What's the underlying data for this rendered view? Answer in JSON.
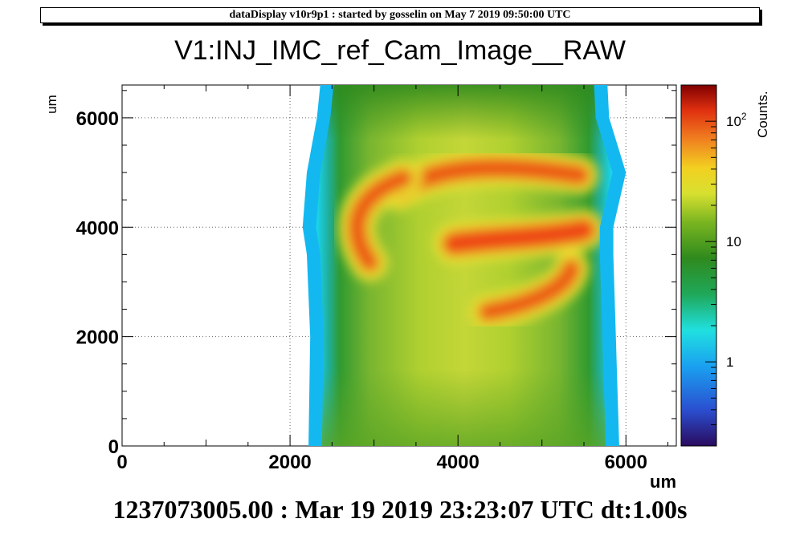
{
  "header": {
    "banner": "dataDisplay v10r9p1 : started by gosselin on May  7 2019 09:50:00 UTC",
    "title": "V1:INJ_IMC_ref_Cam_Image__RAW",
    "footer": "1237073005.00 : Mar 19 2019 23:23:07 UTC dt:1.00s"
  },
  "chart_data": {
    "type": "heatmap",
    "title": "V1:INJ_IMC_ref_Cam_Image__RAW",
    "xlabel": "um",
    "ylabel": "um",
    "xlim": [
      0,
      6600
    ],
    "ylim": [
      0,
      6600
    ],
    "x_ticks": [
      "0",
      "2000",
      "4000",
      "6000"
    ],
    "y_ticks": [
      "0",
      "2000",
      "4000",
      "6000"
    ],
    "grid": true,
    "colorbar": {
      "label": "Counts.",
      "scale": "log",
      "range": [
        0.2,
        200
      ],
      "tick_labels": [
        "1",
        "10",
        "10^2"
      ]
    },
    "beam": {
      "left_edge_um": [
        [
          0,
          2220
        ],
        [
          2000,
          2240
        ],
        [
          3500,
          2200
        ],
        [
          4000,
          2150
        ],
        [
          5000,
          2200
        ],
        [
          6000,
          2320
        ],
        [
          6600,
          2360
        ]
      ],
      "right_edge_um": [
        [
          0,
          5920
        ],
        [
          2000,
          5880
        ],
        [
          3500,
          5850
        ],
        [
          4000,
          5850
        ],
        [
          5000,
          6000
        ],
        [
          6000,
          5800
        ],
        [
          6600,
          5780
        ]
      ],
      "features": [
        {
          "name": "upper arc",
          "peak_counts": 150,
          "center_um": [
            4700,
            5050
          ]
        },
        {
          "name": "left arc",
          "peak_counts": 140,
          "center_um": [
            2900,
            4000
          ]
        },
        {
          "name": "central bar",
          "peak_counts": 160,
          "center_um": [
            4700,
            3700
          ]
        },
        {
          "name": "lower arc",
          "peak_counts": 140,
          "center_um": [
            4900,
            2700
          ]
        }
      ],
      "background_counts": 30
    }
  }
}
